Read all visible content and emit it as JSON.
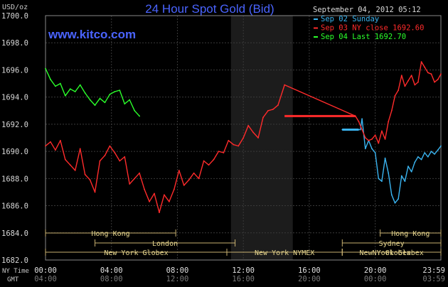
{
  "chart_data": {
    "type": "line",
    "title": "24 Hour Spot Gold (Bid)",
    "brand": "www.kitco.com",
    "ylabel": "USD/oz",
    "timestamp": "September 04, 2012 05:12",
    "ylim": [
      1682,
      1700
    ],
    "yticks": [
      "1682.0",
      "1684.0",
      "1686.0",
      "1688.0",
      "1690.0",
      "1692.0",
      "1694.0",
      "1696.0",
      "1698.0",
      "1700.0"
    ],
    "x_row_labels": {
      "ny": "NY Time",
      "gmt": "GMT"
    },
    "xticks_ny": [
      "00:00",
      "04:00",
      "08:00",
      "12:00",
      "16:00",
      "20:00",
      "23:59"
    ],
    "xticks_gmt": [
      "04:00",
      "08:00",
      "12:00",
      "16:00",
      "20:00",
      "00:00",
      "03:59"
    ],
    "x_range_hours": [
      0,
      23.983
    ],
    "shaded_range": [
      11.25,
      15.0
    ],
    "legend": [
      {
        "label": "Sep 02 Sunday",
        "color": "#3ab4f0"
      },
      {
        "label": "Sep 03 NY close 1692.60",
        "color": "#ff2b2b"
      },
      {
        "label": "Sep 04 Last 1692.70",
        "color": "#2bff2b"
      }
    ],
    "markets": [
      {
        "label": "Hong Kong",
        "row": 0,
        "start": 0.0,
        "end": 7.9
      },
      {
        "label": "Hong Kong",
        "row": 0,
        "start": 20.3,
        "end": 23.983
      },
      {
        "label": "London",
        "row": 1,
        "start": 3.0,
        "end": 11.5
      },
      {
        "label": "Sydney",
        "row": 1,
        "start": 18.0,
        "end": 23.983
      },
      {
        "label": "New York Globex",
        "row": 2,
        "start": 0.0,
        "end": 11.0
      },
      {
        "label": "New York NYMEX",
        "row": 2,
        "start": 11.0,
        "end": 18.0
      },
      {
        "label": "NY Globex",
        "row": 2,
        "start": 18.0,
        "end": 23.983
      },
      {
        "label": "New York Globex",
        "row": 2,
        "start": 18.0,
        "end": 23.983
      }
    ],
    "series": [
      {
        "name": "Sep 02 Sunday",
        "color": "#3ab4f0",
        "x": [
          18.0,
          19.1,
          19.2,
          19.4,
          19.6,
          19.8,
          20.0,
          20.2,
          20.4,
          20.6,
          20.8,
          21.0,
          21.2,
          21.4,
          21.6,
          21.8,
          22.0,
          22.2,
          22.4,
          22.6,
          22.8,
          23.0,
          23.2,
          23.4,
          23.6,
          23.8,
          23.983
        ],
        "y": [
          1691.6,
          1691.6,
          1692.4,
          1690.2,
          1690.8,
          1690.2,
          1689.9,
          1688.0,
          1687.8,
          1689.5,
          1688.4,
          1686.8,
          1686.2,
          1686.5,
          1688.2,
          1687.8,
          1688.9,
          1688.5,
          1689.2,
          1689.6,
          1689.4,
          1689.9,
          1689.6,
          1690.0,
          1689.8,
          1690.1,
          1690.4
        ]
      },
      {
        "name": "Sep 03 NY close 1692.60",
        "color": "#ff2b2b",
        "x": [
          0.0,
          0.3,
          0.6,
          0.9,
          1.2,
          1.5,
          1.8,
          2.1,
          2.4,
          2.7,
          3.0,
          3.3,
          3.6,
          3.9,
          4.2,
          4.5,
          4.8,
          5.1,
          5.4,
          5.7,
          6.0,
          6.3,
          6.6,
          6.9,
          7.2,
          7.5,
          7.8,
          8.1,
          8.4,
          8.7,
          9.0,
          9.3,
          9.6,
          9.9,
          10.2,
          10.5,
          10.8,
          11.1,
          11.4,
          11.7,
          12.0,
          12.3,
          12.6,
          12.9,
          13.2,
          13.5,
          13.8,
          14.1,
          14.5,
          18.8,
          19.0,
          19.2,
          19.4,
          19.6,
          19.8,
          20.0,
          20.2,
          20.4,
          20.6,
          20.8,
          21.0,
          21.2,
          21.4,
          21.6,
          21.8,
          22.0,
          22.2,
          22.4,
          22.6,
          22.8,
          23.0,
          23.2,
          23.4,
          23.6,
          23.8,
          23.983
        ],
        "y": [
          1690.4,
          1690.7,
          1690.1,
          1690.8,
          1689.4,
          1689.0,
          1688.6,
          1690.2,
          1688.3,
          1687.9,
          1687.0,
          1689.3,
          1689.7,
          1690.4,
          1689.9,
          1689.3,
          1689.6,
          1687.6,
          1688.0,
          1688.4,
          1687.2,
          1686.3,
          1686.9,
          1685.5,
          1686.8,
          1686.3,
          1687.2,
          1688.6,
          1687.5,
          1687.9,
          1688.4,
          1688.0,
          1689.3,
          1689.0,
          1689.4,
          1690.0,
          1689.9,
          1690.8,
          1690.5,
          1690.4,
          1691.0,
          1691.9,
          1691.4,
          1691.0,
          1692.5,
          1693.0,
          1693.1,
          1693.4,
          1694.9,
          1692.6,
          1692.2,
          1691.6,
          1691.0,
          1690.8,
          1690.9,
          1691.2,
          1690.6,
          1691.5,
          1690.9,
          1692.2,
          1693.0,
          1694.1,
          1694.5,
          1695.6,
          1694.8,
          1695.2,
          1695.6,
          1694.9,
          1695.1,
          1696.6,
          1696.2,
          1695.8,
          1695.7,
          1695.1,
          1695.3,
          1695.7
        ]
      },
      {
        "name": "Sep 04 Last 1692.70",
        "color": "#2bff2b",
        "x": [
          0.0,
          0.3,
          0.6,
          0.9,
          1.2,
          1.5,
          1.8,
          2.1,
          2.4,
          2.7,
          3.0,
          3.3,
          3.6,
          3.9,
          4.2,
          4.5,
          4.8,
          5.1,
          5.4,
          5.7
        ],
        "y": [
          1696.1,
          1695.3,
          1694.8,
          1695.0,
          1694.1,
          1694.6,
          1694.4,
          1694.9,
          1694.3,
          1693.8,
          1693.4,
          1693.9,
          1693.6,
          1694.2,
          1694.4,
          1694.5,
          1693.5,
          1693.8,
          1693.0,
          1692.6
        ]
      }
    ],
    "flat_close_segment": {
      "x": [
        14.5,
        18.8
      ],
      "y": 1692.6,
      "color": "#ff2b2b"
    },
    "sunday_open_segment": {
      "x": [
        18.0,
        19.0
      ],
      "y": 1691.6,
      "color": "#3ab4f0"
    }
  }
}
